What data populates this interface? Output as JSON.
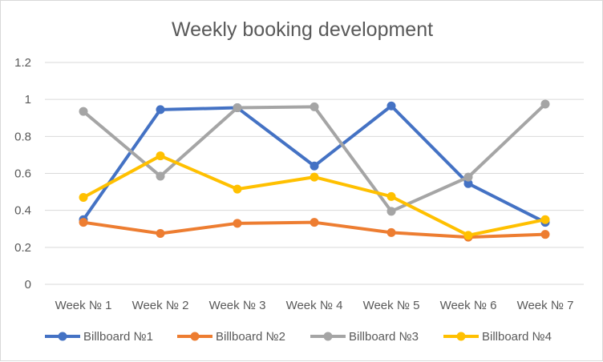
{
  "chart_data": {
    "type": "line",
    "title": "Weekly booking development",
    "xlabel": "",
    "ylabel": "",
    "categories": [
      "Week № 1",
      "Week № 2",
      "Week № 3",
      "Week № 4",
      "Week № 5",
      "Week № 6",
      "Week № 7"
    ],
    "ylim": [
      0,
      1.2
    ],
    "yticks": [
      "0",
      "0.2",
      "0.4",
      "0.6",
      "0.8",
      "1",
      "1.2"
    ],
    "grid": true,
    "legend_position": "bottom",
    "series": [
      {
        "name": "Billboard №1",
        "color": "#4472c4",
        "values": [
          0.35,
          0.945,
          0.955,
          0.64,
          0.965,
          0.545,
          0.335
        ]
      },
      {
        "name": "Billboard №2",
        "color": "#ed7d31",
        "values": [
          0.335,
          0.275,
          0.33,
          0.335,
          0.28,
          0.255,
          0.27
        ]
      },
      {
        "name": "Billboard №3",
        "color": "#a5a5a5",
        "values": [
          0.935,
          0.585,
          0.955,
          0.96,
          0.395,
          0.58,
          0.975
        ]
      },
      {
        "name": "Billboard №4",
        "color": "#ffc000",
        "values": [
          0.47,
          0.695,
          0.515,
          0.58,
          0.475,
          0.265,
          0.35
        ]
      }
    ]
  }
}
